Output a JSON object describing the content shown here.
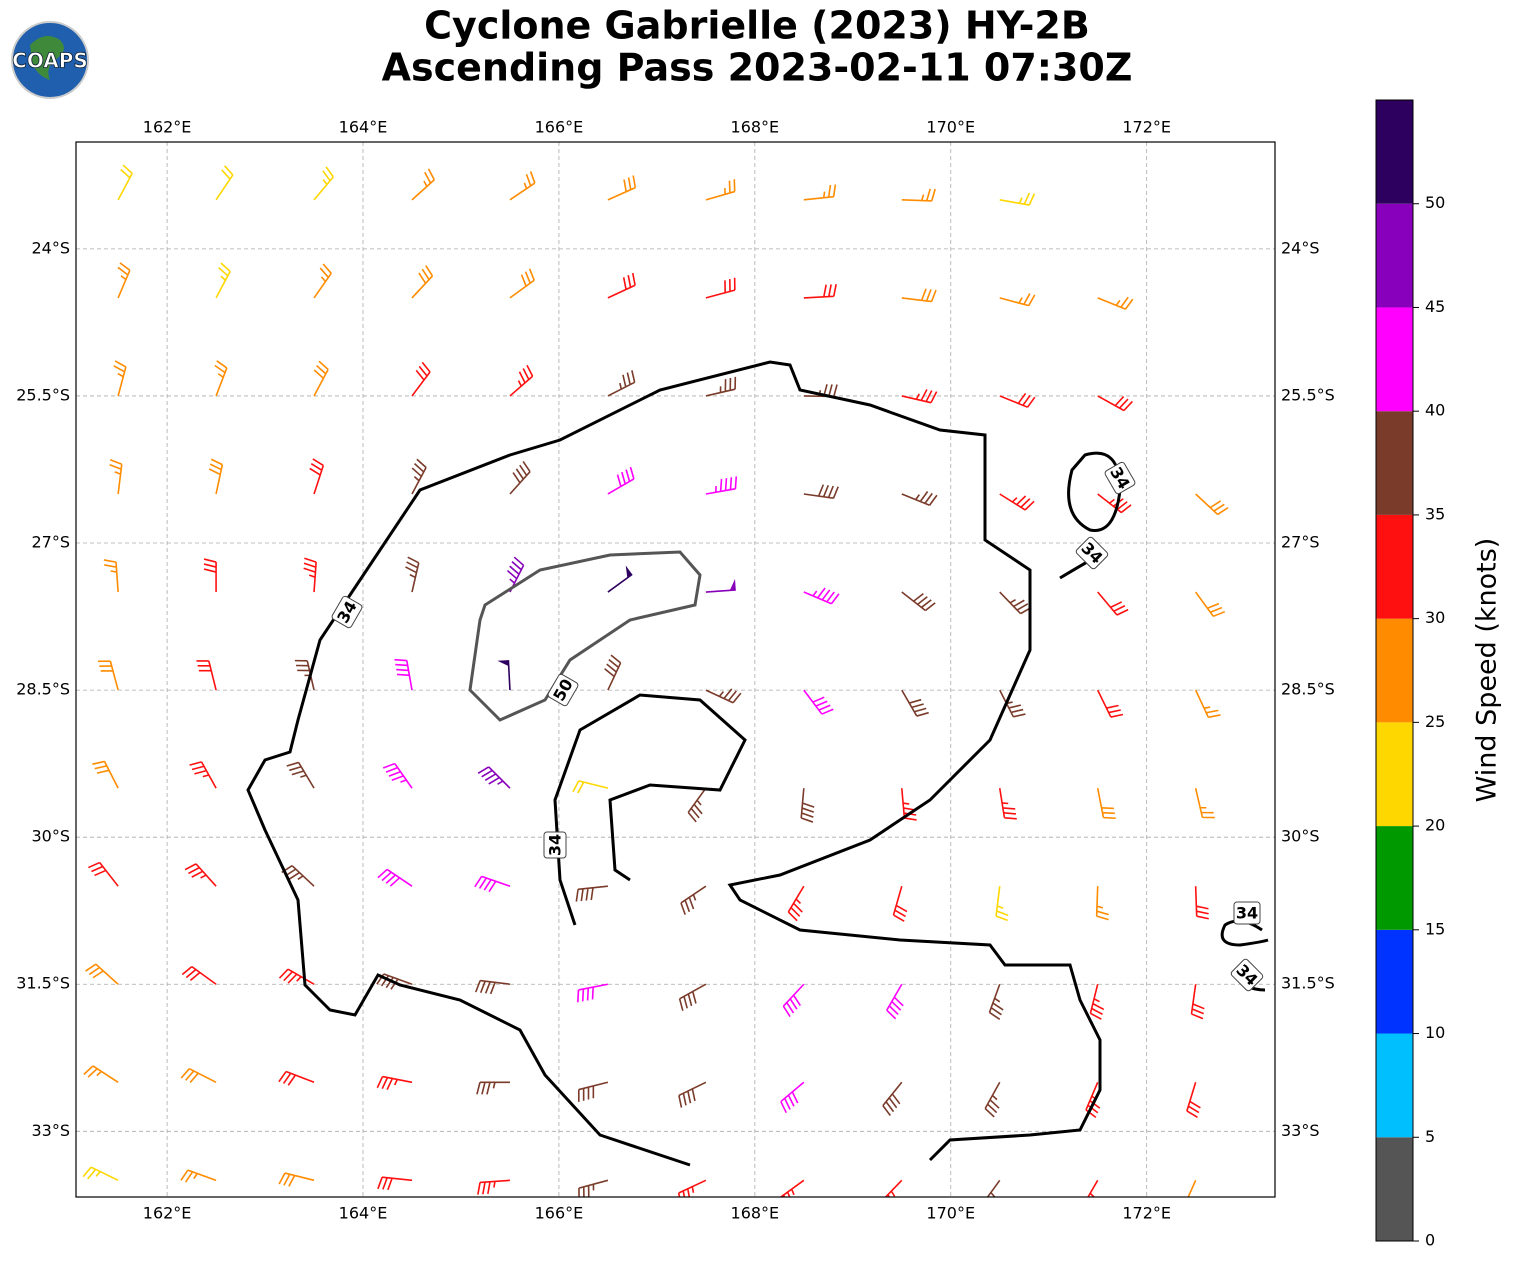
{
  "chart_data": {
    "type": "wind-barbs",
    "logo": "COAPS",
    "title": "Cyclone Gabrielle (2023) HY-2B",
    "subtitle": "Ascending Pass 2023-02-11 07:30Z",
    "xlim": [
      161.07,
      173.31
    ],
    "ylim": [
      -33.67,
      -22.91
    ],
    "xticks": [
      {
        "value": 162,
        "label": "162°E"
      },
      {
        "value": 164,
        "label": "164°E"
      },
      {
        "value": 166,
        "label": "166°E"
      },
      {
        "value": 168,
        "label": "168°E"
      },
      {
        "value": 170,
        "label": "170°E"
      },
      {
        "value": 172,
        "label": "172°E"
      }
    ],
    "yticks": [
      {
        "value": -24,
        "label": "24°S"
      },
      {
        "value": -25.5,
        "label": "25.5°S"
      },
      {
        "value": -27,
        "label": "27°S"
      },
      {
        "value": -28.5,
        "label": "28.5°S"
      },
      {
        "value": -30,
        "label": "30°S"
      },
      {
        "value": -31.5,
        "label": "31.5°S"
      },
      {
        "value": -33,
        "label": "33°S"
      }
    ],
    "grid": true,
    "lons": [
      161.5,
      162.5,
      163.5,
      164.5,
      165.5,
      166.5,
      167.5,
      168.5,
      169.5,
      170.5,
      171.5,
      172.5
    ],
    "lats": [
      -23.5,
      -24.5,
      -25.5,
      -26.5,
      -27.5,
      -28.5,
      -29.5,
      -30.5,
      -31.5,
      -32.5,
      -33.5
    ],
    "speed": [
      [
        22,
        22,
        23,
        26,
        27,
        28,
        27,
        27,
        26,
        24,
        null,
        null
      ],
      [
        26,
        24,
        26,
        28,
        29,
        31,
        32,
        30,
        29,
        27,
        26,
        null
      ],
      [
        26,
        27,
        28,
        31,
        33,
        36,
        37,
        36,
        34,
        32,
        31,
        null
      ],
      [
        26,
        28,
        31,
        35,
        38,
        42,
        44,
        39,
        37,
        34,
        34,
        28
      ],
      [
        27,
        30,
        33,
        37,
        47,
        52,
        48,
        43,
        38,
        35,
        32,
        28
      ],
      [
        28,
        31,
        36,
        42,
        51,
        38,
        36,
        41,
        39,
        35,
        31,
        27
      ],
      [
        29,
        33,
        37,
        43,
        46,
        22,
        35,
        38,
        34,
        33,
        29,
        26
      ],
      [
        31,
        33,
        36,
        41,
        42,
        38,
        37,
        33,
        31,
        24,
        27,
        30
      ],
      [
        29,
        32,
        34,
        38,
        39,
        41,
        39,
        42,
        41,
        37,
        33,
        32
      ],
      [
        27,
        29,
        32,
        34,
        36,
        38,
        39,
        41,
        38,
        36,
        34,
        32
      ],
      [
        24,
        27,
        29,
        31,
        33,
        35,
        34,
        34,
        33,
        35,
        33,
        28
      ]
    ],
    "direction": [
      [
        28,
        34,
        40,
        48,
        56,
        66,
        74,
        84,
        92,
        100,
        106,
        112
      ],
      [
        23,
        28,
        35,
        43,
        54,
        65,
        75,
        87,
        97,
        105,
        112,
        118
      ],
      [
        15,
        21,
        28,
        37,
        49,
        63,
        77,
        91,
        103,
        112,
        119,
        125
      ],
      [
        7,
        12,
        18,
        28,
        42,
        60,
        80,
        98,
        112,
        122,
        128,
        133
      ],
      [
        356,
        0,
        4,
        13,
        27,
        54,
        86,
        113,
        128,
        136,
        140,
        144
      ],
      [
        345,
        346,
        347,
        350,
        357,
        25,
        115,
        143,
        150,
        153,
        154,
        155
      ],
      [
        333,
        331,
        329,
        325,
        315,
        284,
        216,
        185,
        175,
        171,
        169,
        167
      ],
      [
        322,
        318,
        313,
        304,
        289,
        264,
        236,
        211,
        196,
        187,
        182,
        178
      ],
      [
        312,
        306,
        300,
        290,
        277,
        259,
        241,
        223,
        210,
        200,
        194,
        188
      ],
      [
        303,
        297,
        291,
        281,
        270,
        256,
        244,
        230,
        219,
        209,
        203,
        197
      ],
      [
        296,
        290,
        284,
        276,
        266,
        255,
        245,
        234,
        224,
        216,
        210,
        204
      ]
    ],
    "contour_labels": [
      34,
      34,
      34,
      34,
      34,
      34,
      50
    ],
    "colorbar": {
      "label": "Wind Speed (knots)",
      "lim": [
        0,
        55
      ],
      "ticks": [
        0,
        5,
        10,
        15,
        20,
        25,
        30,
        35,
        40,
        45,
        50
      ],
      "colors": [
        "#555555",
        "#00bfff",
        "#0033ff",
        "#009900",
        "#ffd700",
        "#ff8c00",
        "#ff1010",
        "#7a3b2a",
        "#ff00ff",
        "#8800bb",
        "#2d0060"
      ]
    }
  }
}
